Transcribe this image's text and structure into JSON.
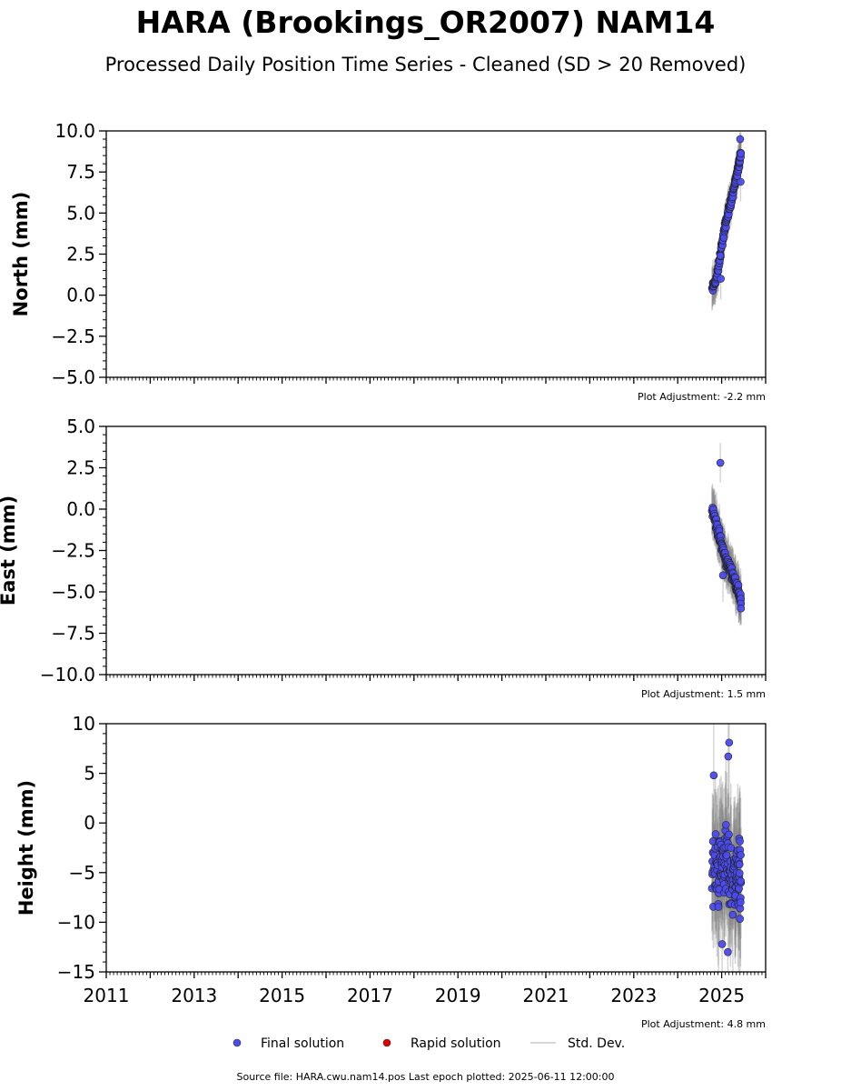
{
  "title": "HARA (Brookings_OR2007) NAM14",
  "subtitle": "Processed Daily Position Time Series - Cleaned (SD > 20 Removed)",
  "legend": {
    "final": "Final solution",
    "rapid": "Rapid solution",
    "std": "Std. Dev."
  },
  "footer": "Source file: HARA.cwu.nam14.pos  Last epoch plotted: 2025-06-11 12:00:00",
  "colors": {
    "final": "#4b4bf0",
    "rapid": "#e00000",
    "std": "#808080"
  },
  "chart_data": [
    {
      "type": "scatter",
      "ylabel": "North (mm)",
      "xlim": [
        2011,
        2026
      ],
      "ylim": [
        -5,
        10
      ],
      "yticks": [
        -5,
        -2.5,
        0,
        2.5,
        5,
        7.5,
        10
      ],
      "ytick_labels": [
        "−5.0",
        "−2.5",
        "0.0",
        "2.5",
        "5.0",
        "7.5",
        "10.0"
      ],
      "adjustment": "Plot Adjustment: -2.2 mm",
      "segments": [
        {
          "t": 2024.78,
          "y": 0.3
        },
        {
          "t": 2024.9,
          "y": 1.2
        },
        {
          "t": 2025.0,
          "y": 3.0
        },
        {
          "t": 2025.1,
          "y": 4.5
        },
        {
          "t": 2025.2,
          "y": 5.6
        },
        {
          "t": 2025.3,
          "y": 6.8
        },
        {
          "t": 2025.38,
          "y": 7.8
        },
        {
          "t": 2025.44,
          "y": 8.6
        }
      ],
      "spread": 0.7,
      "std_half": 1.1,
      "outliers": [
        {
          "t": 2025.42,
          "y": 9.5
        },
        {
          "t": 2025.43,
          "y": 6.9
        },
        {
          "t": 2024.98,
          "y": 1.0
        },
        {
          "t": 2024.97,
          "y": 2.4
        }
      ]
    },
    {
      "type": "scatter",
      "ylabel": "East (mm)",
      "xlim": [
        2011,
        2026
      ],
      "ylim": [
        -10,
        5
      ],
      "yticks": [
        -10,
        -7.5,
        -5,
        -2.5,
        0,
        2.5,
        5
      ],
      "ytick_labels": [
        "−10.0",
        "−7.5",
        "−5.0",
        "−2.5",
        "0.0",
        "2.5",
        "5.0"
      ],
      "adjustment": "Plot Adjustment: 1.5 mm",
      "segments": [
        {
          "t": 2024.78,
          "y": 0.2
        },
        {
          "t": 2024.9,
          "y": -1.2
        },
        {
          "t": 2025.0,
          "y": -2.2
        },
        {
          "t": 2025.1,
          "y": -3.1
        },
        {
          "t": 2025.2,
          "y": -3.6
        },
        {
          "t": 2025.3,
          "y": -4.3
        },
        {
          "t": 2025.38,
          "y": -5.0
        },
        {
          "t": 2025.44,
          "y": -5.5
        }
      ],
      "spread": 0.9,
      "std_half": 1.3,
      "outliers": [
        {
          "t": 2024.97,
          "y": 2.8
        },
        {
          "t": 2025.44,
          "y": -6.0
        },
        {
          "t": 2025.03,
          "y": -4.0
        }
      ]
    },
    {
      "type": "scatter",
      "ylabel": "Height (mm)",
      "xlim": [
        2011,
        2026
      ],
      "ylim": [
        -15,
        10
      ],
      "yticks": [
        -15,
        -10,
        -5,
        0,
        5,
        10
      ],
      "ytick_labels": [
        "−15",
        "−10",
        "−5",
        "0",
        "5",
        "10"
      ],
      "adjustment": "Plot Adjustment: 4.8 mm",
      "segments": [
        {
          "t": 2024.78,
          "y": -4.5
        },
        {
          "t": 2024.9,
          "y": -5.0
        },
        {
          "t": 2025.0,
          "y": -4.0
        },
        {
          "t": 2025.1,
          "y": -3.5
        },
        {
          "t": 2025.2,
          "y": -5.5
        },
        {
          "t": 2025.3,
          "y": -5.5
        },
        {
          "t": 2025.38,
          "y": -5.0
        },
        {
          "t": 2025.44,
          "y": -5.5
        }
      ],
      "spread": 9.0,
      "std_half": 5.5,
      "outliers": [
        {
          "t": 2025.17,
          "y": 8.1
        },
        {
          "t": 2025.15,
          "y": 6.7
        },
        {
          "t": 2024.82,
          "y": 4.8
        },
        {
          "t": 2025.14,
          "y": -13.0
        },
        {
          "t": 2025.01,
          "y": -12.2
        }
      ]
    }
  ],
  "xaxis": {
    "ticks": [
      2011,
      2013,
      2015,
      2017,
      2019,
      2021,
      2023,
      2025
    ],
    "tick_labels": [
      "2011",
      "2013",
      "2015",
      "2017",
      "2019",
      "2021",
      "2023",
      "2025"
    ]
  }
}
